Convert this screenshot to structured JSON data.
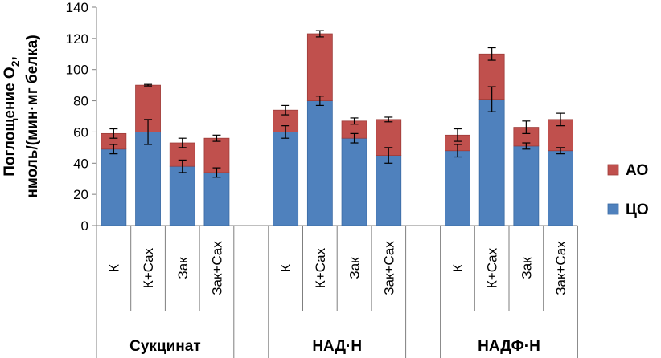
{
  "chart_data": {
    "type": "bar",
    "stacked": true,
    "ylabel_line1": "Поглощение O",
    "ylabel_sub": "2",
    "ylabel_comma": ",",
    "ylabel_line2": "нмоль/(мин·мг белка)",
    "ylim": [
      0,
      140
    ],
    "yticks": [
      0,
      20,
      40,
      60,
      80,
      100,
      120,
      140
    ],
    "grid": false,
    "legend_position": "right",
    "groups": [
      {
        "label": "Сукцинат",
        "categories": [
          "К",
          "К+Сах",
          "Зак",
          "Зак+Сах"
        ]
      },
      {
        "label": "НАД·Н",
        "categories": [
          "К",
          "К+Сах",
          "Зак",
          "Зак+Сах"
        ]
      },
      {
        "label": "НАДФ·Н",
        "categories": [
          "К",
          "К+Сах",
          "Зак",
          "Зак+Сах"
        ]
      }
    ],
    "series": [
      {
        "name": "ЦО",
        "color": "#4f81bd",
        "values": [
          49,
          60,
          38,
          34,
          60,
          80,
          56,
          45,
          48,
          81,
          51,
          48
        ],
        "errors": [
          3,
          8,
          4,
          3,
          4,
          3,
          3,
          5,
          4,
          8,
          2,
          2
        ]
      },
      {
        "name": "АО",
        "color": "#c0504d",
        "values": [
          10,
          30,
          15,
          22,
          14,
          43,
          11,
          23,
          10,
          29,
          12,
          20
        ],
        "errors": [
          3,
          0.5,
          3,
          2,
          3,
          2,
          2,
          1.5,
          4,
          4,
          4,
          4
        ]
      }
    ]
  }
}
